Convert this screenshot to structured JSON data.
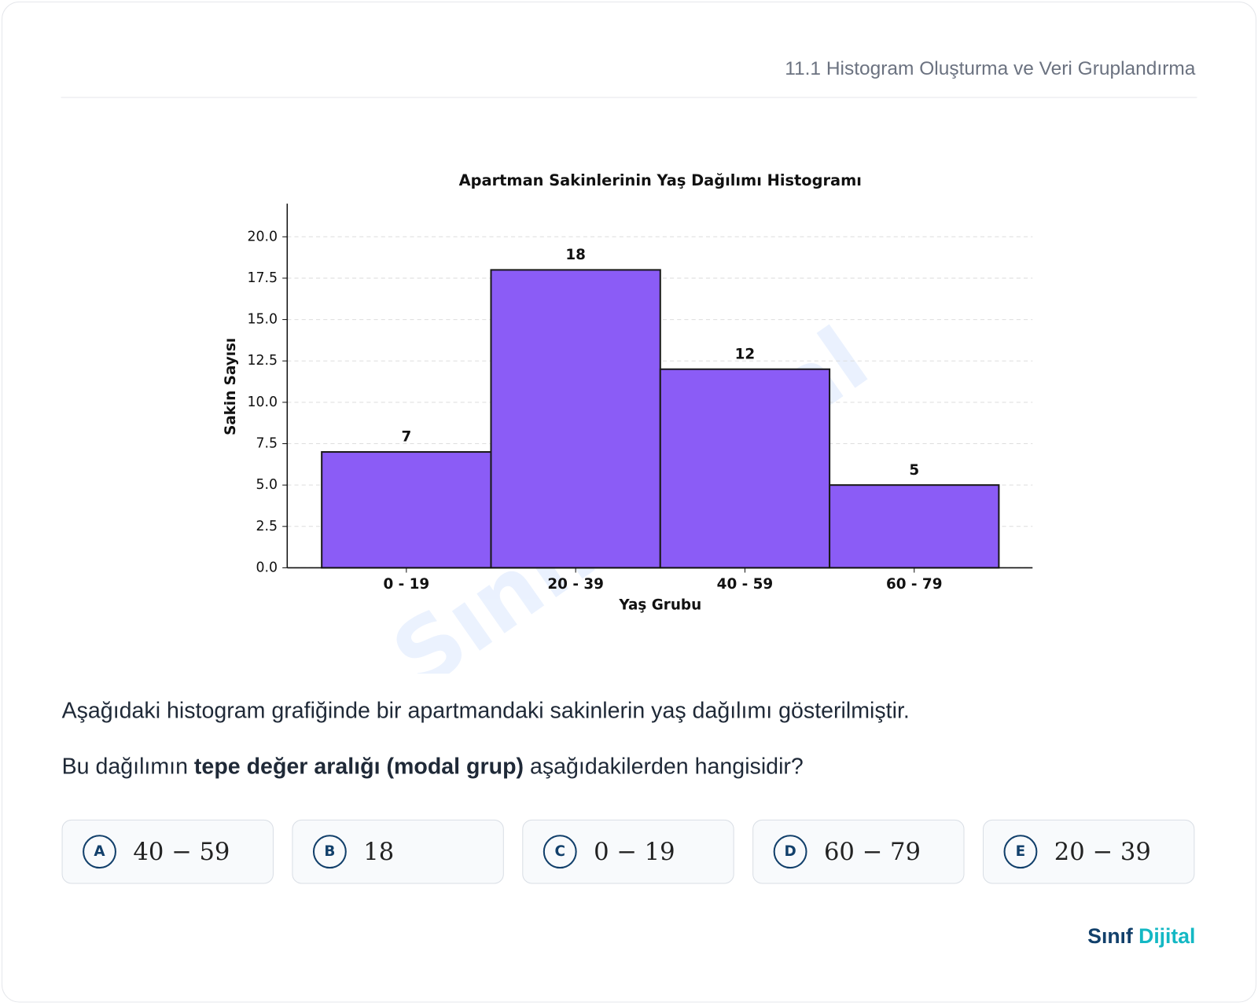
{
  "header": {
    "title": "11.1 Histogram Oluşturma ve Veri Gruplandırma"
  },
  "chart_data": {
    "type": "bar",
    "title": "Apartman Sakinlerinin Yaş Dağılımı Histogramı",
    "x_label": "Yaş Grubu",
    "y_label": "Sakin Sayısı",
    "categories": [
      "0 - 19",
      "20 - 39",
      "40 - 59",
      "60 - 79"
    ],
    "values": [
      7,
      18,
      12,
      5
    ],
    "color": "#8b5cf6",
    "edge_color": "#1a1a1a",
    "ylim": [
      0,
      22
    ],
    "yticks": [
      {
        "value": 0,
        "label": "0.0"
      },
      2.5,
      {
        "value": 5,
        "label": "5.0"
      },
      7.5,
      {
        "value": 10,
        "label": "10.0"
      },
      12.5,
      {
        "value": 15,
        "label": "15.0"
      },
      17.5,
      {
        "value": 20,
        "label": "20.0"
      }
    ],
    "grid": true
  },
  "watermark": "Sınıf Dijital",
  "question": {
    "intro": "Aşağıdaki histogram grafiğinde bir apartmandaki sakinlerin yaş dağılımı gösterilmiştir.",
    "parts": [
      "Bu dağılımın ",
      "tepe değer aralığı (modal grup)",
      " aşağıdakilerden hangisidir?"
    ]
  },
  "options": [
    {
      "letter": "A",
      "text": "40 − 59"
    },
    {
      "letter": "B",
      "text": "18"
    },
    {
      "letter": "C",
      "text": "0 − 19"
    },
    {
      "letter": "D",
      "text": "60 − 79"
    },
    {
      "letter": "E",
      "text": "20 − 39"
    }
  ],
  "brand": {
    "first": "Sınıf",
    "second": "Dijital"
  }
}
